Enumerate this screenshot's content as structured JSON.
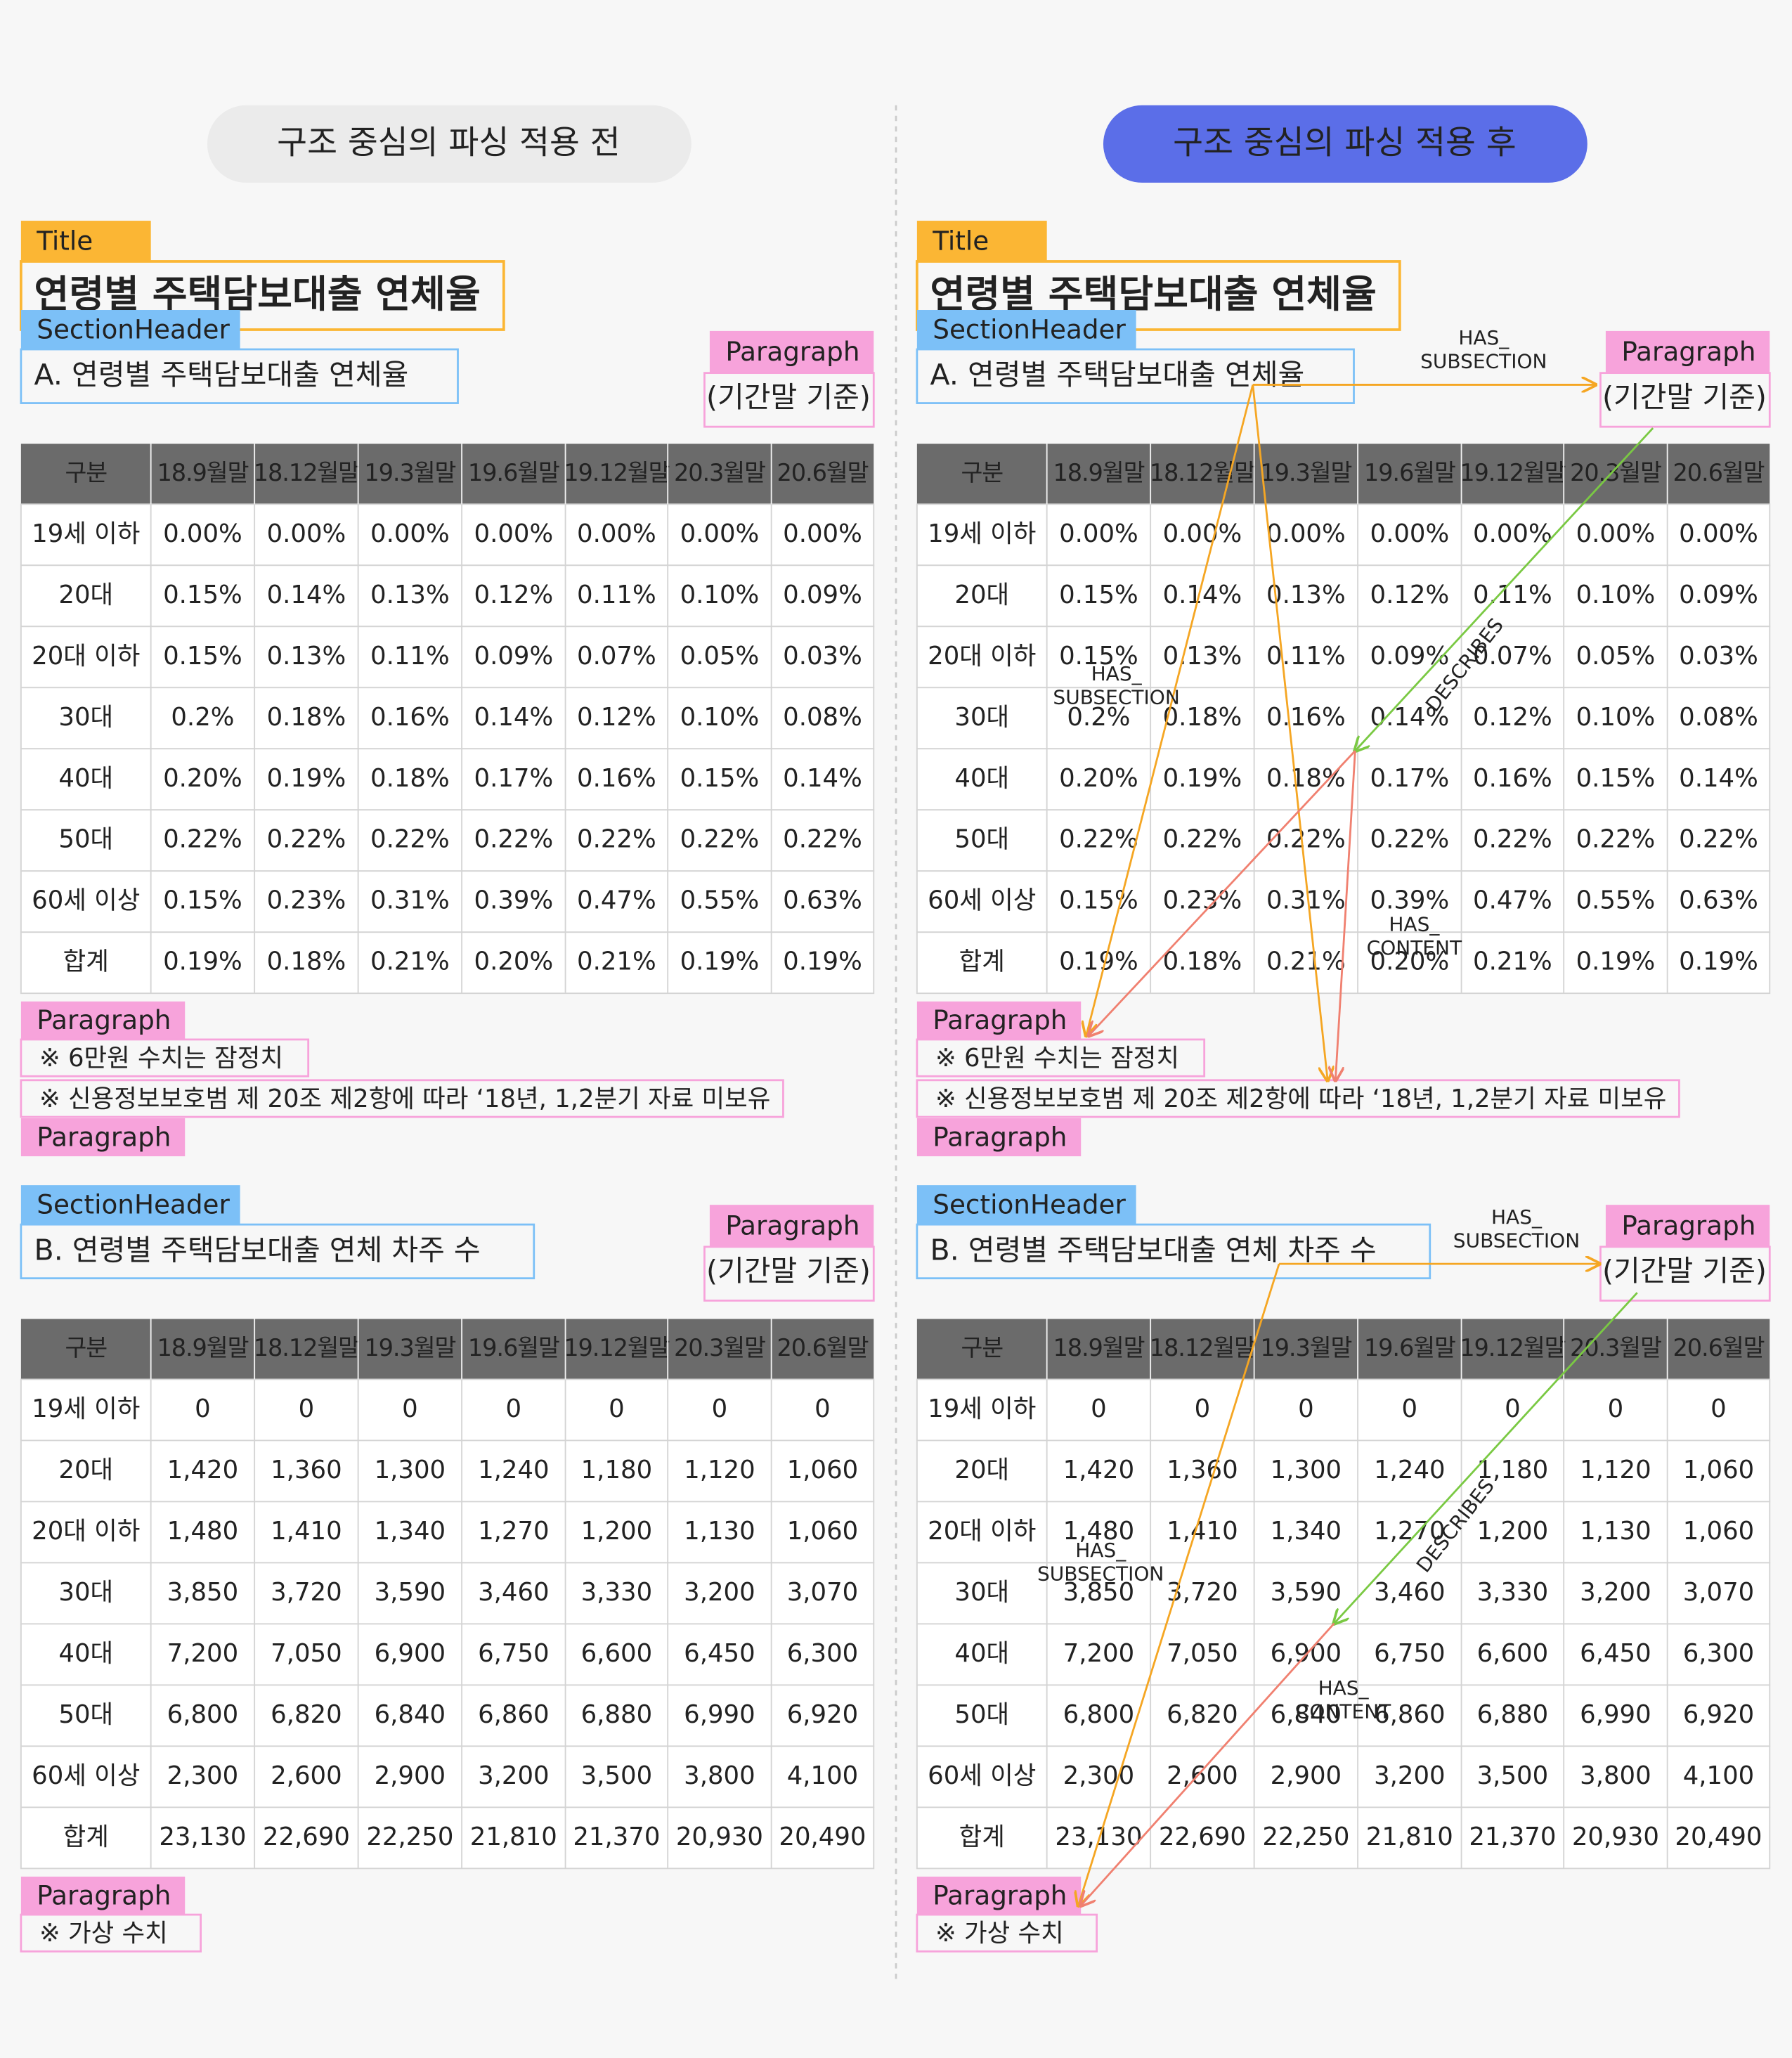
{
  "panels": {
    "before": "구조 중심의 파싱 적용 전",
    "after": "구조 중심의 파싱 적용 후"
  },
  "labels": {
    "title": "Title",
    "section_header": "SectionHeader",
    "paragraph": "Paragraph"
  },
  "document": {
    "title": "연령별 주택담보대출 연체율",
    "sections": [
      {
        "header": "A. 연령별 주택담보대출 연체율",
        "note": "(기간말 기준)",
        "table": {
          "columns": [
            "구분",
            "18.9월말",
            "18.12월말",
            "19.3월말",
            "19.6월말",
            "19.12월말",
            "20.3월말",
            "20.6월말"
          ],
          "rows": [
            [
              "19세 이하",
              "0.00%",
              "0.00%",
              "0.00%",
              "0.00%",
              "0.00%",
              "0.00%",
              "0.00%"
            ],
            [
              "20대",
              "0.15%",
              "0.14%",
              "0.13%",
              "0.12%",
              "0.11%",
              "0.10%",
              "0.09%"
            ],
            [
              "20대 이하",
              "0.15%",
              "0.13%",
              "0.11%",
              "0.09%",
              "0.07%",
              "0.05%",
              "0.03%"
            ],
            [
              "30대",
              "0.2%",
              "0.18%",
              "0.16%",
              "0.14%",
              "0.12%",
              "0.10%",
              "0.08%"
            ],
            [
              "40대",
              "0.20%",
              "0.19%",
              "0.18%",
              "0.17%",
              "0.16%",
              "0.15%",
              "0.14%"
            ],
            [
              "50대",
              "0.22%",
              "0.22%",
              "0.22%",
              "0.22%",
              "0.22%",
              "0.22%",
              "0.22%"
            ],
            [
              "60세 이상",
              "0.15%",
              "0.23%",
              "0.31%",
              "0.39%",
              "0.47%",
              "0.55%",
              "0.63%"
            ],
            [
              "합계",
              "0.19%",
              "0.18%",
              "0.21%",
              "0.20%",
              "0.21%",
              "0.19%",
              "0.19%"
            ]
          ]
        },
        "footnotes": [
          "※ 6만원 수치는 잠정치",
          "※ 신용정보보호범 제 20조 제2항에 따라 ‘18년, 1,2분기 자료 미보유"
        ]
      },
      {
        "header": "B. 연령별 주택담보대출 연체 차주 수",
        "note": "(기간말 기준)",
        "table": {
          "columns": [
            "구분",
            "18.9월말",
            "18.12월말",
            "19.3월말",
            "19.6월말",
            "19.12월말",
            "20.3월말",
            "20.6월말"
          ],
          "rows": [
            [
              "19세 이하",
              "0",
              "0",
              "0",
              "0",
              "0",
              "0",
              "0"
            ],
            [
              "20대",
              "1,420",
              "1,360",
              "1,300",
              "1,240",
              "1,180",
              "1,120",
              "1,060"
            ],
            [
              "20대 이하",
              "1,480",
              "1,410",
              "1,340",
              "1,270",
              "1,200",
              "1,130",
              "1,060"
            ],
            [
              "30대",
              "3,850",
              "3,720",
              "3,590",
              "3,460",
              "3,330",
              "3,200",
              "3,070"
            ],
            [
              "40대",
              "7,200",
              "7,050",
              "6,900",
              "6,750",
              "6,600",
              "6,450",
              "6,300"
            ],
            [
              "50대",
              "6,800",
              "6,820",
              "6,840",
              "6,860",
              "6,880",
              "6,990",
              "6,920"
            ],
            [
              "60세 이상",
              "2,300",
              "2,600",
              "2,900",
              "3,200",
              "3,500",
              "3,800",
              "4,100"
            ],
            [
              "합계",
              "23,130",
              "22,690",
              "22,250",
              "21,810",
              "21,370",
              "20,930",
              "20,490"
            ]
          ]
        },
        "footnotes": [
          "※ 가상 수치"
        ]
      }
    ]
  },
  "relations": {
    "has_subsection": [
      "HAS_",
      "SUBSECTION"
    ],
    "describes": "DESCRIBES",
    "has_content": [
      "HAS_",
      "CONTENT"
    ]
  }
}
